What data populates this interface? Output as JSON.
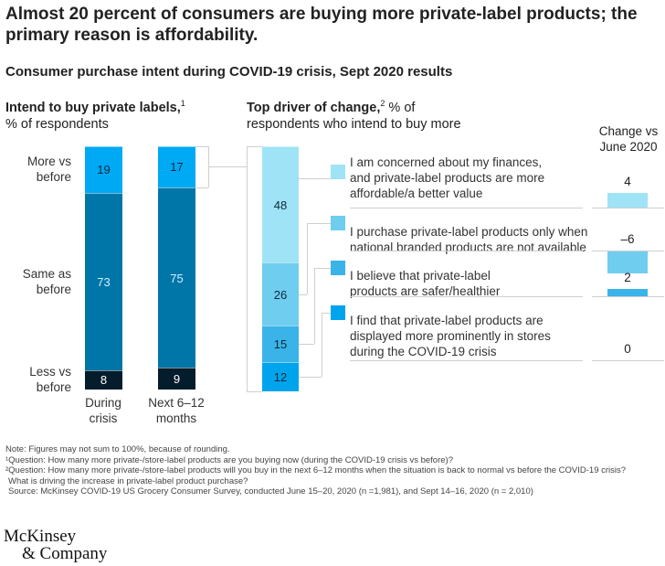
{
  "title": "Almost 20 percent of consumers are buying more private-label products; the primary reason is affordability.",
  "subtitle": "Consumer purchase intent during COVID-19 crisis, Sept 2020 results",
  "chart_data": [
    {
      "type": "bar",
      "stacked": true,
      "title": "Intend to buy private labels,",
      "title_sup": "1",
      "ylabel": "% of respondents",
      "categories": [
        "During crisis",
        "Next 6–12 months"
      ],
      "category_lines": [
        [
          "During",
          "crisis"
        ],
        [
          "Next 6–12",
          "months"
        ]
      ],
      "series": [
        {
          "name": "Less vs before",
          "name_lines": [
            "Less vs",
            "before"
          ],
          "values": [
            8,
            9
          ],
          "color": "#051c2c",
          "text_color": "#ffffff"
        },
        {
          "name": "Same as before",
          "name_lines": [
            "Same as",
            "before"
          ],
          "values": [
            73,
            75
          ],
          "color": "#0076a8",
          "text_color": "#cfefff"
        },
        {
          "name": "More vs before",
          "name_lines": [
            "More vs",
            "before"
          ],
          "values": [
            19,
            17
          ],
          "color": "#00a9f4",
          "text_color": "#0b2a3a"
        }
      ]
    },
    {
      "type": "bar",
      "stacked": true,
      "title": "Top driver of change,",
      "title_sup": "2",
      "title_rest": " % of",
      "ylabel": "respondents who intend to buy more",
      "change_header": [
        "Change vs",
        "June 2020"
      ],
      "series": [
        {
          "name": "I am concerned about my finances, and private-label products are more affordable/a better value",
          "lines": [
            "I am concerned about my finances,",
            "and private-label products are more",
            "affordable/a better value"
          ],
          "value": 48,
          "change": 4,
          "color": "#9fe3f6"
        },
        {
          "name": "I purchase private-label products only when national branded products are not available",
          "lines": [
            "I purchase private-label products only when",
            "national branded products are not available"
          ],
          "value": 26,
          "change": -6,
          "change_label": "–6",
          "color": "#6fcdef"
        },
        {
          "name": "I believe that private-label products are safer/healthier",
          "lines": [
            "I believe that private-label",
            "products are safer/healthier"
          ],
          "value": 15,
          "change": 2,
          "color": "#3ab4e8"
        },
        {
          "name": "I find that private-label products are displayed more prominently in stores during the COVID-19 crisis",
          "lines": [
            "I find that private-label products are",
            "displayed more prominently in stores",
            "during the COVID-19 crisis"
          ],
          "value": 12,
          "change": 0,
          "color": "#00a4ec"
        }
      ]
    }
  ],
  "notes": [
    "Note: Figures may not sum to 100%, because of rounding.",
    "¹Question: How many more private-/store-label products are you buying now (during the COVID-19 crisis vs before)?",
    "²Question: How many more private-/store-label products will you buy in the next 6–12 months when the situation is back to normal vs before the COVID-19 crisis?",
    "  What is driving the increase in private-label product purchase?",
    " Source: McKinsey COVID-19 US Grocery Consumer Survey, conducted June 15–20, 2020 (n =1,981), and Sept 14–16, 2020 (n = 2,010)"
  ],
  "logo": [
    "McKinsey",
    "& Company"
  ]
}
